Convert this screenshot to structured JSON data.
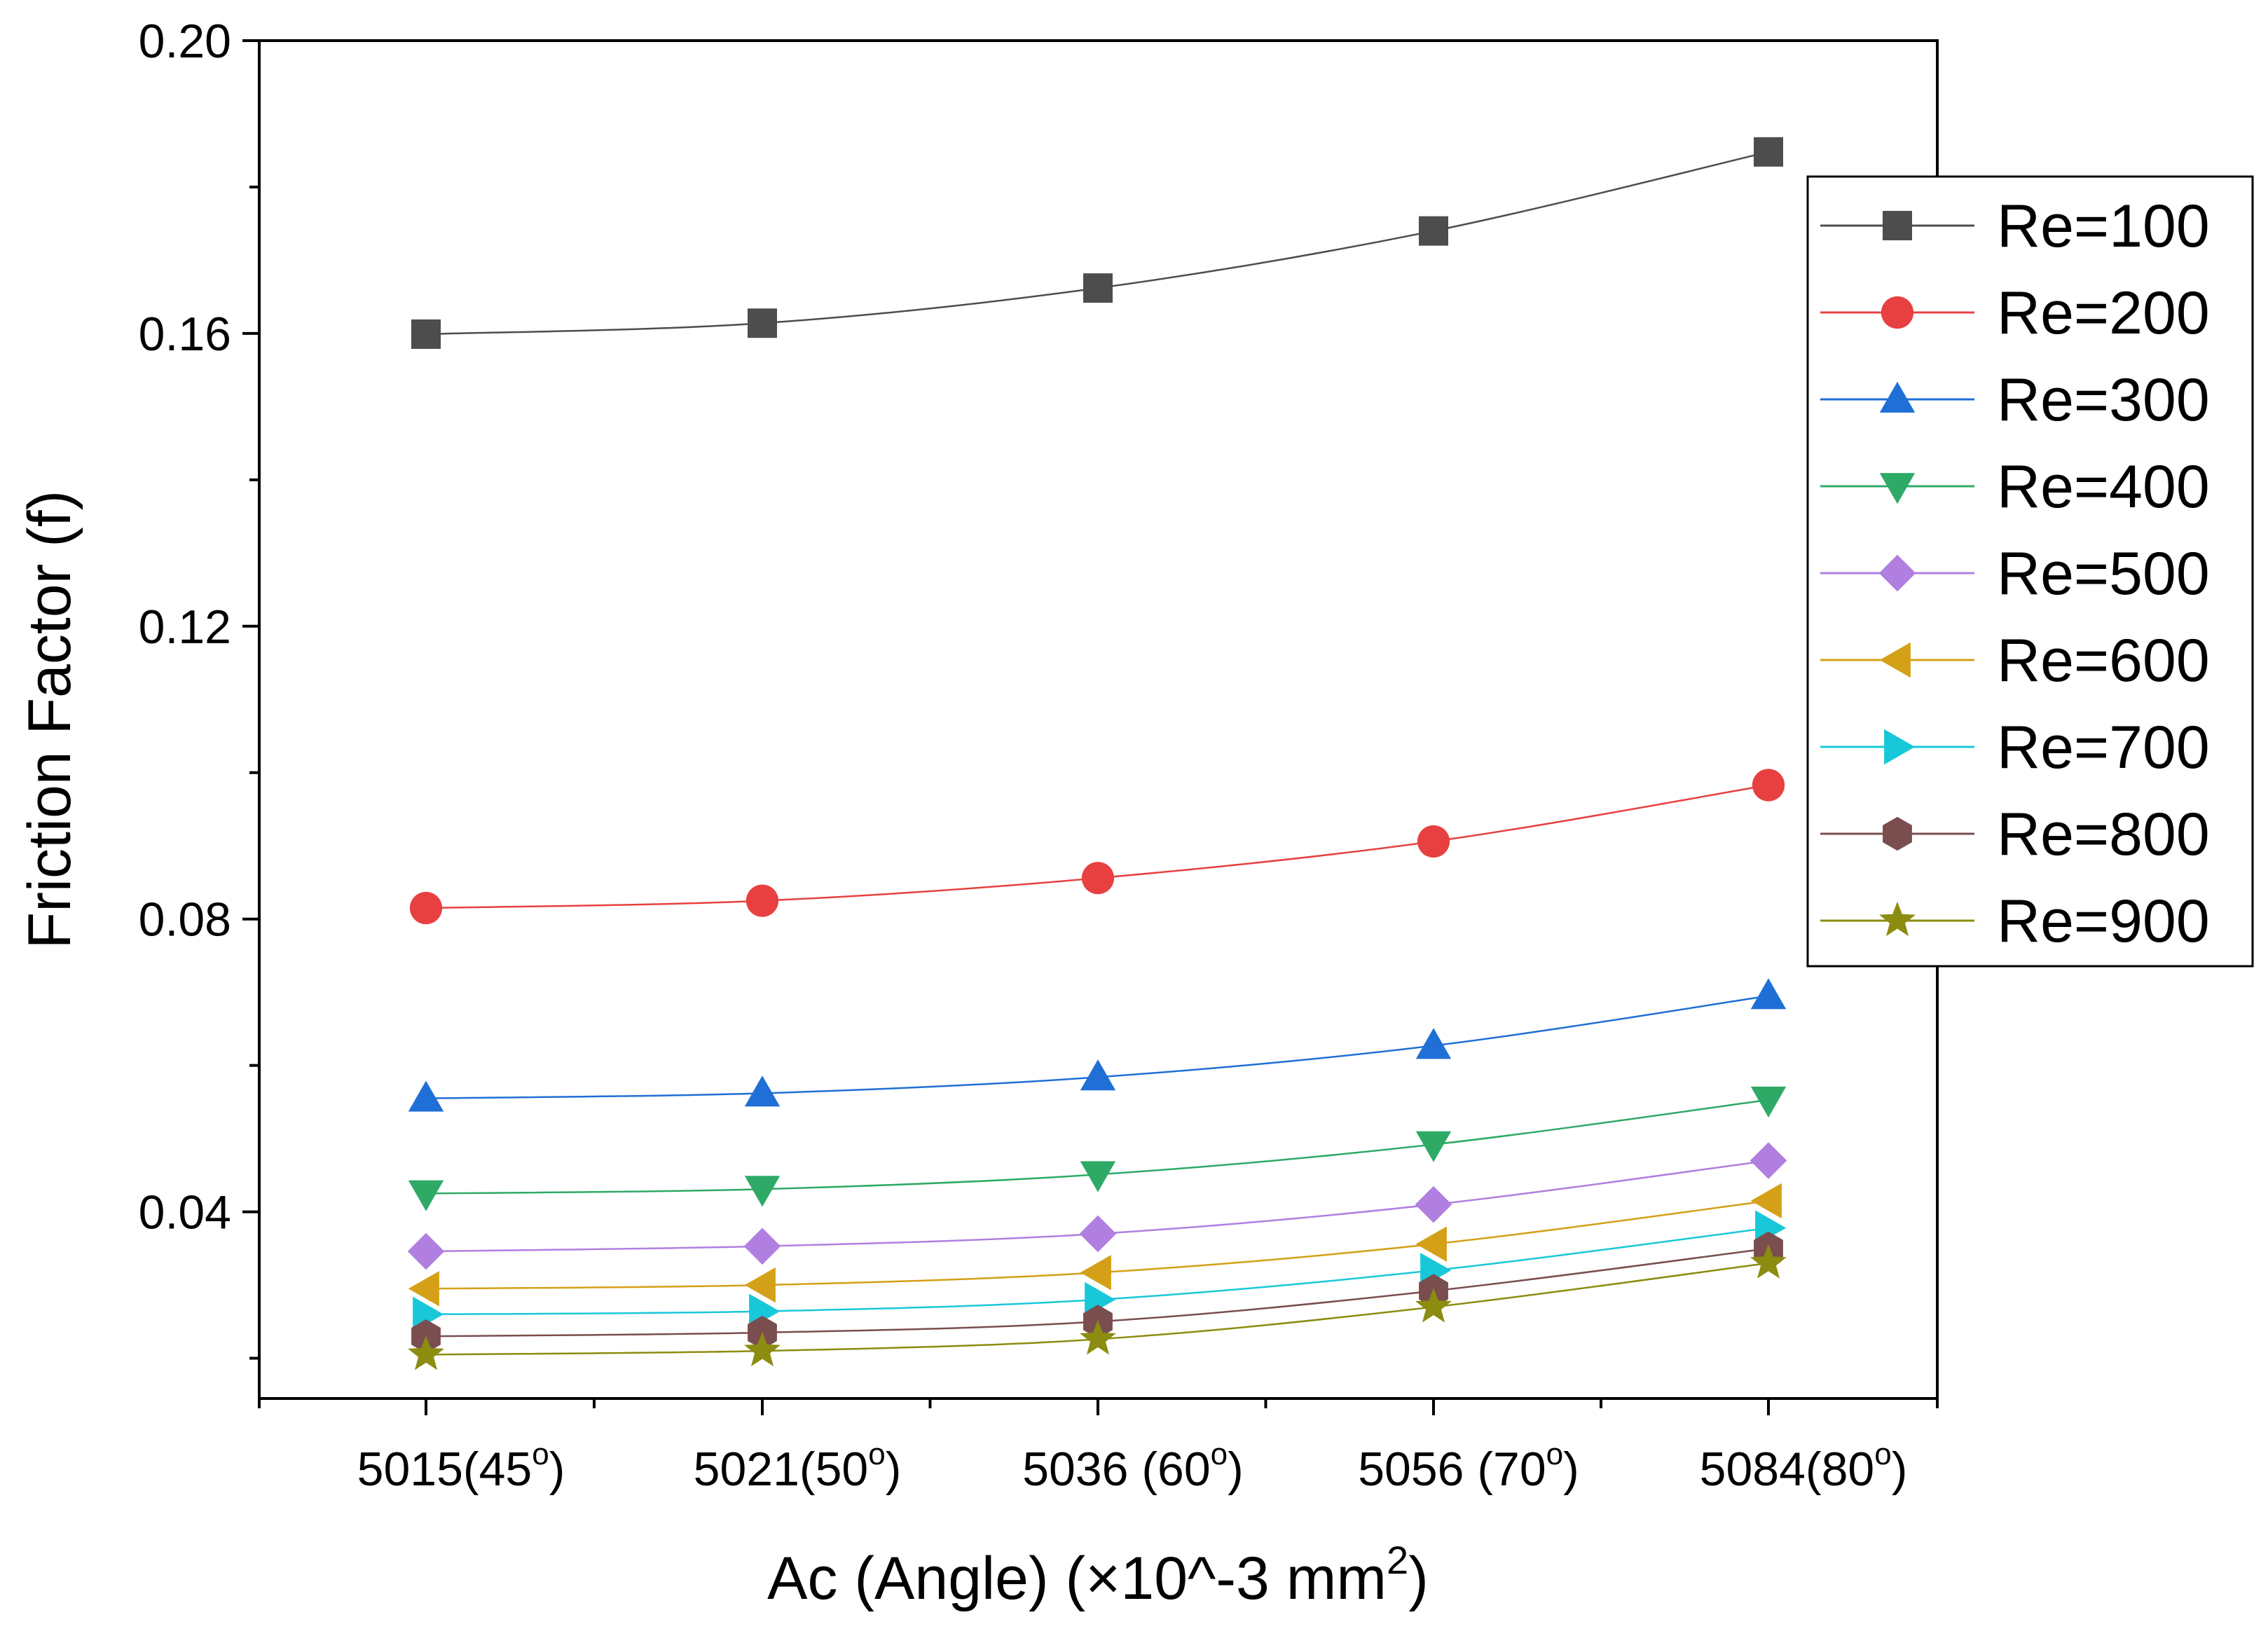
{
  "chart_data": {
    "type": "line",
    "title": "",
    "ylabel": "Friction Factor (f)",
    "xlabel": {
      "main": "Ac (Angle) (×10^-3 mm",
      "sup": "2",
      "end": ")"
    },
    "ylim": [
      0.0145,
      0.2
    ],
    "yticks": [
      {
        "value": 0.04,
        "label": "0.04"
      },
      {
        "value": 0.08,
        "label": "0.08"
      },
      {
        "value": 0.12,
        "label": "0.12"
      },
      {
        "value": 0.16,
        "label": "0.16"
      },
      {
        "value": 0.2,
        "label": "0.20"
      }
    ],
    "categories": [
      {
        "num": "5015",
        "angle": "(45",
        "deg": "o",
        "close": ")"
      },
      {
        "num": "5021",
        "angle": "(50",
        "deg": "o",
        "close": ")"
      },
      {
        "num": "5036",
        "angle": " (60",
        "deg": "o",
        "close": ")"
      },
      {
        "num": "5056",
        "angle": " (70",
        "deg": "o",
        "close": ")"
      },
      {
        "num": "5084",
        "angle": "(80",
        "deg": "o",
        "close": ")"
      }
    ],
    "legend": {
      "position": "right"
    },
    "series": [
      {
        "name": "Re=100",
        "color": "#4d4d4d",
        "marker": "square",
        "values": [
          0.1599,
          0.1614,
          0.1662,
          0.174,
          0.1848
        ]
      },
      {
        "name": "Re=200",
        "color": "#e84040",
        "marker": "circle",
        "values": [
          0.0815,
          0.0825,
          0.0856,
          0.0906,
          0.0983
        ]
      },
      {
        "name": "Re=300",
        "color": "#1f6fd6",
        "marker": "triangle-up",
        "values": [
          0.0555,
          0.0562,
          0.0584,
          0.0627,
          0.0695
        ]
      },
      {
        "name": "Re=400",
        "color": "#2eaa66",
        "marker": "triangle-down",
        "values": [
          0.0425,
          0.0431,
          0.0451,
          0.0492,
          0.0553
        ]
      },
      {
        "name": "Re=500",
        "color": "#b07fe0",
        "marker": "diamond",
        "values": [
          0.0346,
          0.0353,
          0.037,
          0.041,
          0.047
        ]
      },
      {
        "name": "Re=600",
        "color": "#d4a017",
        "marker": "triangle-left",
        "values": [
          0.0295,
          0.03,
          0.0317,
          0.0356,
          0.0415
        ]
      },
      {
        "name": "Re=700",
        "color": "#19c8d8",
        "marker": "triangle-right",
        "values": [
          0.026,
          0.0264,
          0.028,
          0.032,
          0.0378
        ]
      },
      {
        "name": "Re=800",
        "color": "#7a4e4e",
        "marker": "hexagon",
        "values": [
          0.023,
          0.0235,
          0.025,
          0.0292,
          0.035
        ]
      },
      {
        "name": "Re=900",
        "color": "#8c8c10",
        "marker": "star",
        "values": [
          0.0205,
          0.021,
          0.0226,
          0.027,
          0.033
        ]
      }
    ]
  }
}
